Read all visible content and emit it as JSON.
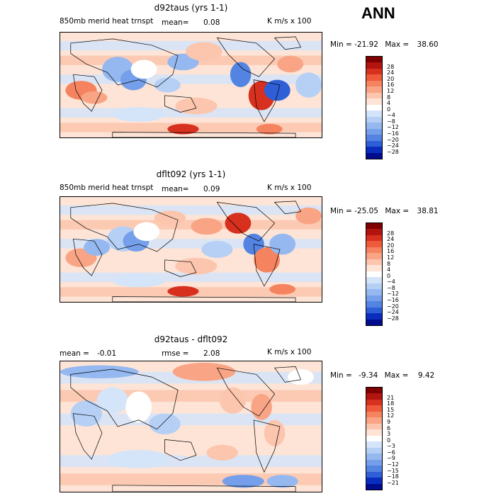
{
  "season": "ANN",
  "panels": [
    {
      "title": "d92taus (yrs 1-1)",
      "left_label": "850mb merid heat trnspt",
      "mean_label": "mean=",
      "mean_value": "0.08",
      "units": "K m/s x 100",
      "min_label": "Min =",
      "min_value": "-21.92",
      "max_label": "Max =",
      "max_value": "38.60",
      "levels": [
        "28",
        "24",
        "20",
        "16",
        "12",
        "8",
        "4",
        "0",
        "−4",
        "−8",
        "−12",
        "−16",
        "−20",
        "−24",
        "−28"
      ]
    },
    {
      "title": "dflt092 (yrs 1-1)",
      "left_label": "850mb merid heat trnspt",
      "mean_label": "mean=",
      "mean_value": "0.09",
      "units": "K m/s x 100",
      "min_label": "Min =",
      "min_value": "-25.05",
      "max_label": "Max =",
      "max_value": "38.81",
      "levels": [
        "28",
        "24",
        "20",
        "16",
        "12",
        "8",
        "4",
        "0",
        "−4",
        "−8",
        "−12",
        "−16",
        "−20",
        "−24",
        "−28"
      ]
    },
    {
      "title": "d92taus - dflt092",
      "left_label": "mean =",
      "mean_label": "",
      "mean_value": "-0.01",
      "rmse_label": "rmse =",
      "rmse_value": "2.08",
      "units": "K m/s x 100",
      "min_label": "Min =",
      "min_value": "-9.34",
      "max_label": "Max =",
      "max_value": "9.42",
      "levels": [
        "21",
        "18",
        "15",
        "12",
        "9",
        "6",
        "3",
        "0",
        "−3",
        "−6",
        "−9",
        "−12",
        "−15",
        "−18",
        "−21"
      ]
    }
  ],
  "colorbar_colors": [
    "#7f0000",
    "#b2150f",
    "#d7301f",
    "#ef5a3a",
    "#f6835f",
    "#f9a585",
    "#fcc5ad",
    "#fde4d6",
    "#ffffff",
    "#d4e4f9",
    "#b5cff5",
    "#95b8f0",
    "#759fea",
    "#5484e2",
    "#2f5fd6",
    "#0a2dbf",
    "#000c8c"
  ],
  "chart_data": [
    {
      "type": "heatmap",
      "title": "d92taus (yrs 1-1)",
      "subtitle": "850mb merid heat trnspt",
      "units": "K m/s x 100",
      "mean": 0.08,
      "min": -21.92,
      "max": 38.6,
      "contour_levels": [
        -28,
        -24,
        -20,
        -16,
        -12,
        -8,
        -4,
        0,
        4,
        8,
        12,
        16,
        20,
        24,
        28
      ]
    },
    {
      "type": "heatmap",
      "title": "dflt092 (yrs 1-1)",
      "subtitle": "850mb merid heat trnspt",
      "units": "K m/s x 100",
      "mean": 0.09,
      "min": -25.05,
      "max": 38.81,
      "contour_levels": [
        -28,
        -24,
        -20,
        -16,
        -12,
        -8,
        -4,
        0,
        4,
        8,
        12,
        16,
        20,
        24,
        28
      ]
    },
    {
      "type": "heatmap",
      "title": "d92taus - dflt092",
      "units": "K m/s x 100",
      "mean": -0.01,
      "rmse": 2.08,
      "min": -9.34,
      "max": 9.42,
      "contour_levels": [
        -21,
        -18,
        -15,
        -12,
        -9,
        -6,
        -3,
        0,
        3,
        6,
        9,
        12,
        15,
        18,
        21
      ]
    }
  ]
}
